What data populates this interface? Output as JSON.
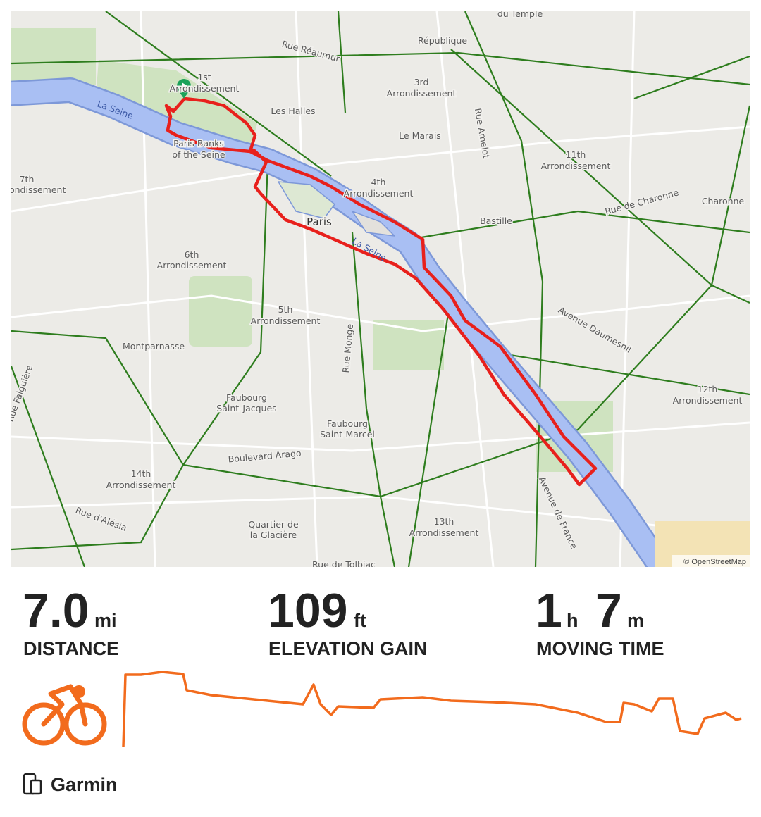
{
  "map": {
    "labels": [
      "du Temple",
      "République",
      "Rue Réaumur",
      "1st",
      "Arrondissement",
      "3rd",
      "Arrondissement",
      "Les Halles",
      "Le Marais",
      "Rue Amelot",
      "11th",
      "Arrondissement",
      "Rue de Charonne",
      "Charonne",
      "La Seine",
      "Paris Banks",
      "of the Seine",
      "7th",
      "Arrondissement",
      "4th",
      "Arrondissement",
      "Paris",
      "Bastille",
      "La Seine",
      "6th",
      "Arrondissement",
      "5th",
      "Arrondissement",
      "Avenue Daumesnil",
      "Montparnasse",
      "Rue Monge",
      "Rue Falguière",
      "12th",
      "Arrondissement",
      "Faubourg",
      "Saint-Jacques",
      "Faubourg",
      "Saint-Marcel",
      "Boulevard Arago",
      "14th",
      "Arrondissement",
      "Rue d'Alésia",
      "Quartier de",
      "la Glacière",
      "13th",
      "Arrondissement",
      "Avenue de France",
      "Rue de Tolbiac"
    ],
    "attribution": "© OpenStreetMap"
  },
  "stats": [
    {
      "value": "7.0",
      "unit": "mi",
      "label": "DISTANCE"
    },
    {
      "value": "109",
      "unit": "ft",
      "label": "ELEVATION GAIN"
    },
    {
      "value": "1",
      "unit": "h",
      "value2": "7",
      "unit2": "m",
      "label": "MOVING TIME"
    }
  ],
  "footer": {
    "device": "Garmin"
  }
}
